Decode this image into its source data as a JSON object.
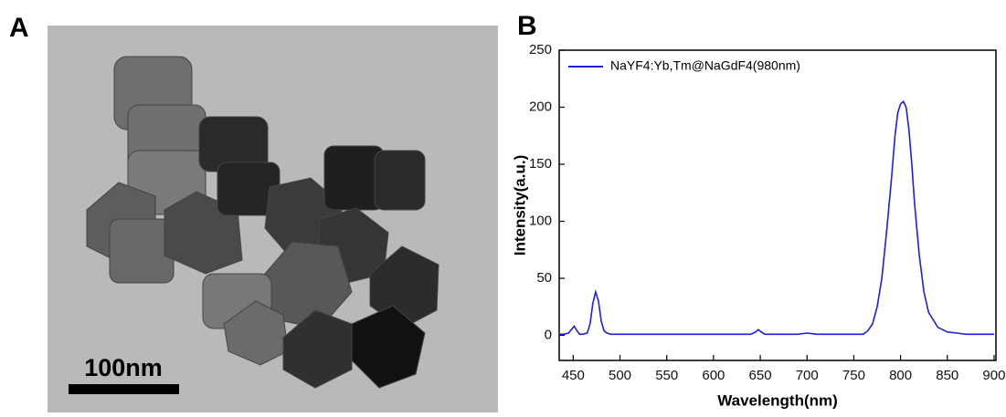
{
  "panel_labels": [
    "A",
    "B"
  ],
  "scale_bar_label": "100nm",
  "chart_data": {
    "type": "line",
    "xlabel": "Wavelength(nm)",
    "ylabel": "Intensity(a.u.)",
    "x": [
      435,
      440,
      445,
      448,
      451,
      454,
      457,
      460,
      465,
      468,
      471,
      474,
      477,
      480,
      483,
      486,
      490,
      500,
      510,
      520,
      530,
      540,
      550,
      560,
      570,
      580,
      590,
      600,
      610,
      620,
      630,
      640,
      645,
      648,
      651,
      655,
      660,
      670,
      680,
      690,
      700,
      710,
      720,
      730,
      740,
      750,
      760,
      765,
      770,
      775,
      780,
      785,
      790,
      794,
      797,
      800,
      803,
      806,
      809,
      812,
      815,
      820,
      825,
      830,
      840,
      850,
      860,
      870,
      880,
      890,
      900
    ],
    "series": [
      {
        "name": "NaYF4:Yb,Tm@NaGdF4(980nm)",
        "color": "#1f1fe0",
        "values": [
          1,
          1,
          2,
          5,
          8,
          4,
          1,
          1,
          2,
          10,
          28,
          38,
          30,
          12,
          4,
          2,
          1,
          1,
          1,
          1,
          1,
          1,
          1,
          1,
          1,
          1,
          1,
          1,
          1,
          1,
          1,
          1,
          3,
          5,
          3,
          1,
          1,
          1,
          1,
          1,
          2,
          1,
          1,
          1,
          1,
          1,
          1,
          4,
          10,
          25,
          50,
          90,
          135,
          175,
          195,
          203,
          205,
          200,
          180,
          150,
          115,
          70,
          38,
          20,
          7,
          3,
          2,
          1,
          1,
          1,
          1
        ]
      }
    ],
    "xlim": [
      435,
      902
    ],
    "ylim": [
      -22,
      250
    ],
    "xticks": [
      450,
      500,
      550,
      600,
      650,
      700,
      750,
      800,
      850,
      900
    ],
    "yticks": [
      0,
      50,
      100,
      150,
      200,
      250
    ],
    "legend": "upper left"
  }
}
